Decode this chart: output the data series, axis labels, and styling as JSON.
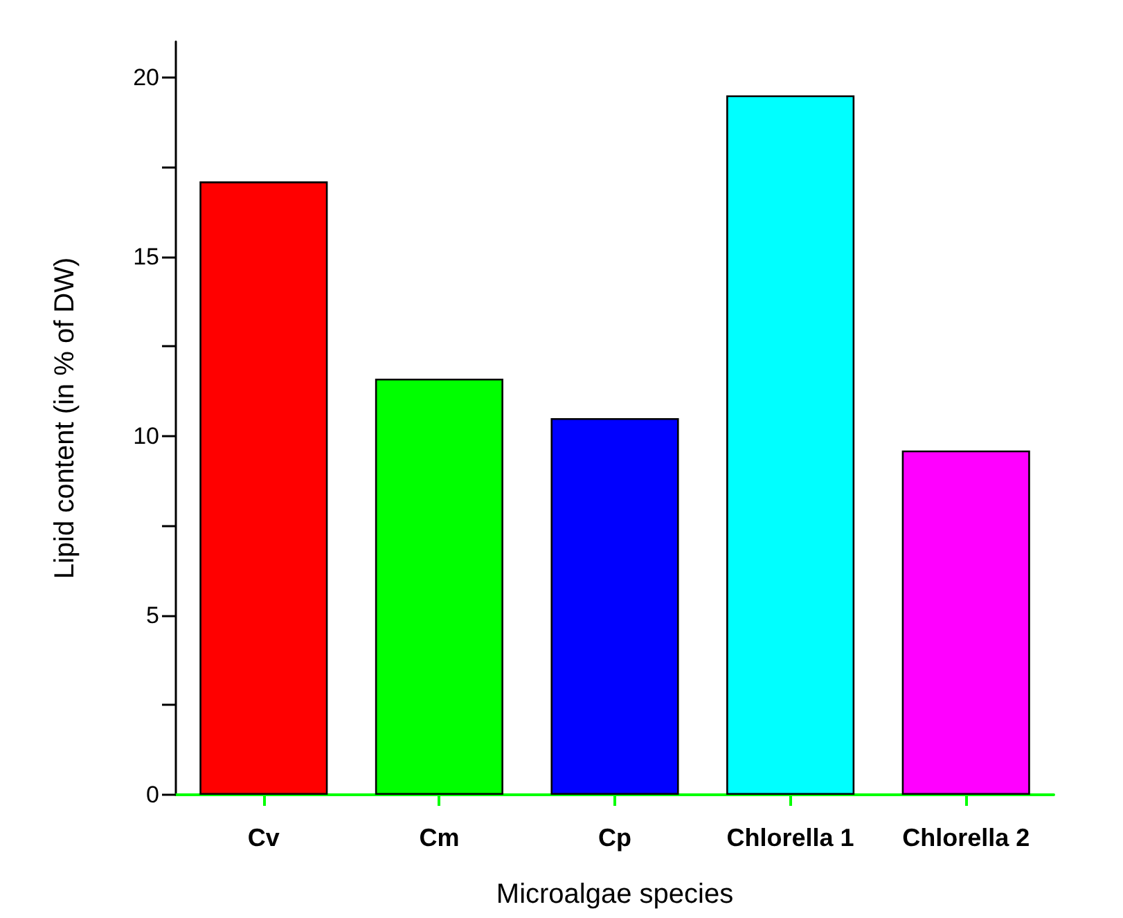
{
  "chart_data": {
    "type": "bar",
    "xlabel": "Microalgae species",
    "ylabel": "Lipid content (in % of DW)",
    "categories": [
      "Cv",
      "Cm",
      "Cp",
      "Chlorella 1",
      "Chlorella 2"
    ],
    "values": [
      17.1,
      11.6,
      10.5,
      19.5,
      9.6
    ],
    "colors": [
      "#ff0000",
      "#00ff00",
      "#0000ff",
      "#00ffff",
      "#ff00ff"
    ],
    "ylim": [
      0,
      21
    ],
    "yticks": [
      0,
      {
        "value": 2.5,
        "label": null
      },
      5,
      {
        "value": 7.5,
        "label": null
      },
      10,
      {
        "value": 12.5,
        "label": null
      },
      15,
      {
        "value": 17.5,
        "label": null
      },
      20
    ],
    "grid": false
  }
}
